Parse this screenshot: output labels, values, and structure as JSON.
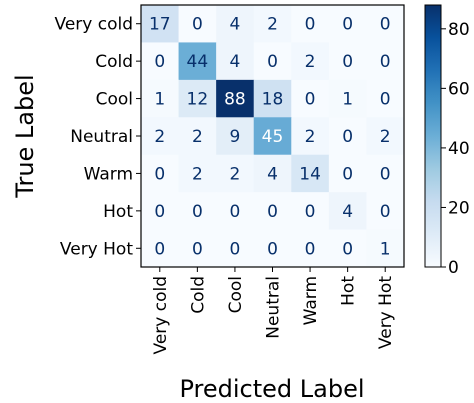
{
  "chart_data": {
    "type": "heatmap",
    "xlabel": "Predicted Label",
    "ylabel": "True Label",
    "x_categories": [
      "Very cold",
      "Cold",
      "Cool",
      "Neutral",
      "Warm",
      "Hot",
      "Very Hot"
    ],
    "y_categories": [
      "Very cold",
      "Cold",
      "Cool",
      "Neutral",
      "Warm",
      "Hot",
      "Very Hot"
    ],
    "matrix": [
      [
        17,
        0,
        4,
        2,
        0,
        0,
        0
      ],
      [
        0,
        44,
        4,
        0,
        2,
        0,
        0
      ],
      [
        1,
        12,
        88,
        18,
        0,
        1,
        0
      ],
      [
        2,
        2,
        9,
        45,
        2,
        0,
        2
      ],
      [
        0,
        2,
        2,
        4,
        14,
        0,
        0
      ],
      [
        0,
        0,
        0,
        0,
        0,
        4,
        0
      ],
      [
        0,
        0,
        0,
        0,
        0,
        0,
        1
      ]
    ],
    "colorbar": {
      "range": [
        0,
        88
      ],
      "ticks": [
        "0",
        "20",
        "40",
        "60",
        "80"
      ],
      "tick_values": [
        0,
        20,
        40,
        60,
        80
      ]
    },
    "colormap": "Blues",
    "grid": false
  }
}
